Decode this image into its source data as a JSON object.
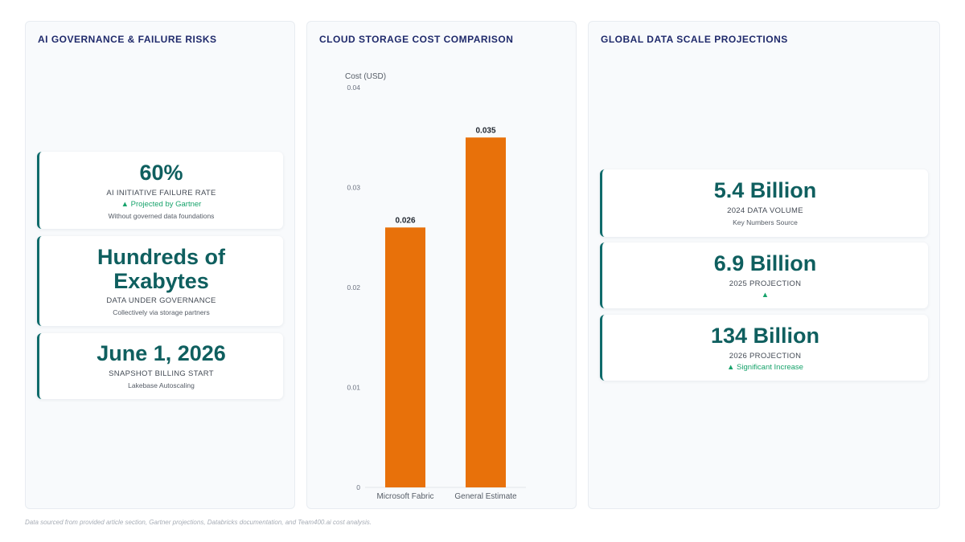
{
  "panels": {
    "governance": {
      "title": "AI GOVERNANCE & FAILURE RISKS",
      "kpis": [
        {
          "value": "60%",
          "label": "AI INITIATIVE FAILURE RATE",
          "trend": "▲ Projected by Gartner",
          "note": "Without governed data foundations"
        },
        {
          "value": "Hundreds of Exabytes",
          "label": "DATA UNDER GOVERNANCE",
          "note": "Collectively via storage partners"
        },
        {
          "value": "June 1, 2026",
          "label": "SNAPSHOT BILLING START",
          "note": "Lakebase Autoscaling"
        }
      ]
    },
    "storage": {
      "title": "CLOUD STORAGE COST COMPARISON"
    },
    "scale": {
      "title": "GLOBAL DATA SCALE PROJECTIONS",
      "kpis": [
        {
          "value": "5.4 Billion",
          "label": "2024 DATA VOLUME",
          "note": "Key Numbers Source"
        },
        {
          "value": "6.9 Billion",
          "label": "2025 PROJECTION",
          "trend": "▲"
        },
        {
          "value": "134 Billion",
          "label": "2026 PROJECTION",
          "trend": "▲ Significant Increase"
        }
      ]
    }
  },
  "chart_data": {
    "type": "bar",
    "title": "CLOUD STORAGE COST COMPARISON",
    "ylabel": "Cost (USD)",
    "xlabel": "",
    "categories": [
      "Microsoft Fabric",
      "General Estimate"
    ],
    "values": [
      0.026,
      0.035
    ],
    "data_labels": [
      "0.026",
      "0.035"
    ],
    "ylim": [
      0,
      0.04
    ],
    "yticks": [
      0,
      0.01,
      0.02,
      0.03,
      0.04
    ],
    "ytick_labels": [
      "0",
      "0.01",
      "0.02",
      "0.03",
      "0.04"
    ],
    "bar_color": "#e8710a",
    "grid": false,
    "legend": "none"
  },
  "footer": "Data sourced from provided article section, Gartner projections, Databricks documentation, and Team400.ai cost analysis.",
  "colors": {
    "accent": "#0f5f5f",
    "title": "#1f2a6b",
    "trend": "#17a36b",
    "bar": "#e8710a"
  }
}
